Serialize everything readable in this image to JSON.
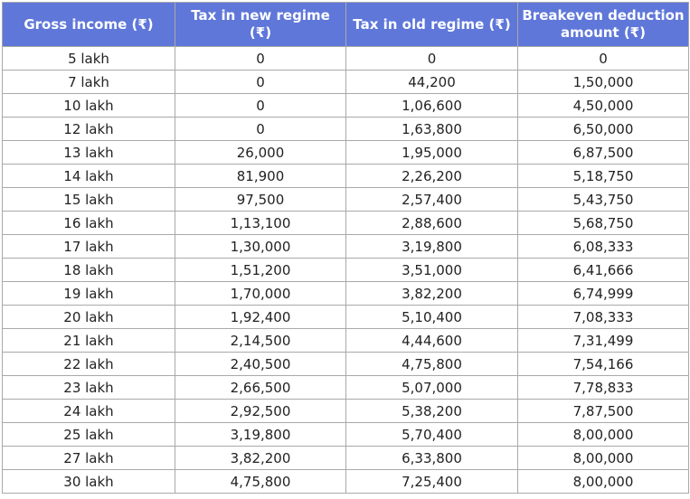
{
  "table": {
    "header": [
      "Gross income (₹)",
      "Tax in new regime (₹)",
      "Tax in old regime (₹)",
      "Breakeven deduction amount (₹)"
    ],
    "rows": [
      [
        "5 lakh",
        "0",
        "0",
        "0"
      ],
      [
        "7 lakh",
        "0",
        "44,200",
        "1,50,000"
      ],
      [
        "10 lakh",
        "0",
        "1,06,600",
        "4,50,000"
      ],
      [
        "12 lakh",
        "0",
        "1,63,800",
        "6,50,000"
      ],
      [
        "13 lakh",
        "26,000",
        "1,95,000",
        "6,87,500"
      ],
      [
        "14 lakh",
        "81,900",
        "2,26,200",
        "5,18,750"
      ],
      [
        "15 lakh",
        "97,500",
        "2,57,400",
        "5,43,750"
      ],
      [
        "16 lakh",
        "1,13,100",
        "2,88,600",
        "5,68,750"
      ],
      [
        "17 lakh",
        "1,30,000",
        "3,19,800",
        "6,08,333"
      ],
      [
        "18 lakh",
        "1,51,200",
        "3,51,000",
        "6,41,666"
      ],
      [
        "19 lakh",
        "1,70,000",
        "3,82,200",
        "6,74,999"
      ],
      [
        "20 lakh",
        "1,92,400",
        "5,10,400",
        "7,08,333"
      ],
      [
        "21 lakh",
        "2,14,500",
        "4,44,600",
        "7,31,499"
      ],
      [
        "22 lakh",
        "2,40,500",
        "4,75,800",
        "7,54,166"
      ],
      [
        "23 lakh",
        "2,66,500",
        "5,07,000",
        "7,78,833"
      ],
      [
        "24 lakh",
        "2,92,500",
        "5,38,200",
        "7,87,500"
      ],
      [
        "25 lakh",
        "3,19,800",
        "5,70,400",
        "8,00,000"
      ],
      [
        "27 lakh",
        "3,82,200",
        "6,33,800",
        "8,00,000"
      ],
      [
        "30 lakh",
        "4,75,800",
        "7,25,400",
        "8,00,000"
      ]
    ]
  }
}
